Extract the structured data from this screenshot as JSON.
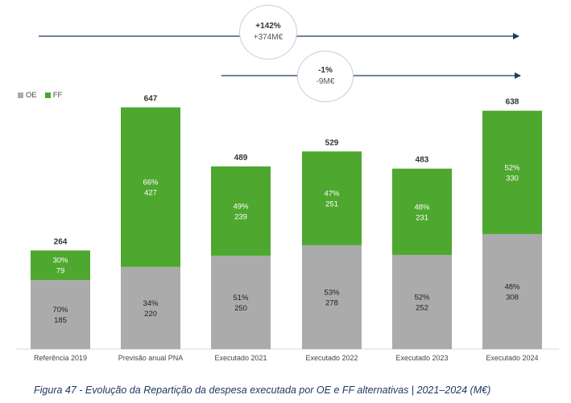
{
  "caption": "Figura 47 - Evolução da Repartição da despesa executada por OE e FF alternativas | 2021–2024 (M€)",
  "colors": {
    "OE": "#ababab",
    "FF": "#4ea72e",
    "arrow": "#1f3864"
  },
  "annotations": [
    {
      "main": "+142%",
      "sub": "+374M€"
    },
    {
      "main": "-1%",
      "sub": "-9M€"
    }
  ],
  "chart_data": {
    "type": "bar",
    "stacked": true,
    "legend_position": "top-left",
    "grid": false,
    "title": "",
    "xlabel": "",
    "ylabel": "",
    "ylim": [
      0,
      700
    ],
    "categories": [
      "Referência 2019",
      "Previsão anual PNA",
      "Executado 2021",
      "Executado 2022",
      "Executado 2023",
      "Executado 2024"
    ],
    "totals": [
      264,
      647,
      489,
      529,
      483,
      638
    ],
    "series": [
      {
        "name": "OE",
        "values": [
          185,
          220,
          250,
          278,
          252,
          308
        ],
        "percent_labels": [
          "70%",
          "34%",
          "51%",
          "53%",
          "52%",
          "48%"
        ]
      },
      {
        "name": "FF",
        "values": [
          79,
          427,
          239,
          251,
          231,
          330
        ],
        "percent_labels": [
          "30%",
          "66%",
          "49%",
          "47%",
          "48%",
          "52%"
        ]
      }
    ]
  }
}
